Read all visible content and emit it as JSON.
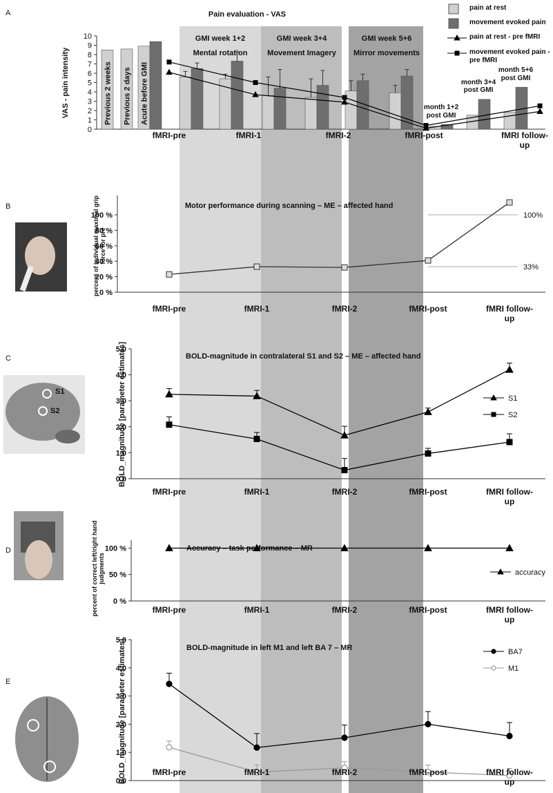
{
  "gmi_phases": [
    {
      "label": "GMI week 1+2",
      "task": "Mental rotation"
    },
    {
      "label": "GMI week 3+4",
      "task": "Movement Imagery"
    },
    {
      "label": "GMI week 5+6",
      "task": "Mirror movements"
    }
  ],
  "chart_data": [
    {
      "panel": "A",
      "type": "bar",
      "title": "Pain evaluation - VAS",
      "y_label": "VAS - pain intensity",
      "ylim": [
        0,
        10
      ],
      "yticks": [
        0,
        1,
        2,
        3,
        4,
        5,
        6,
        7,
        8,
        9,
        10
      ],
      "legend": "top-right",
      "categories": [
        "Previous 2 weeks",
        "Previous 2 days",
        "Acute before GMI",
        null,
        null,
        null,
        null,
        null,
        null,
        "month 1+2 post GMI",
        "month 3+4 post GMI",
        "month 5+6 post GMI"
      ],
      "series": [
        {
          "name": "pain at rest",
          "color": "#d0d0d0",
          "values": [
            8.5,
            8.6,
            8.9,
            5.6,
            5.4,
            3.6,
            3.4,
            4.1,
            3.9,
            0.3,
            1.5,
            1.8
          ],
          "errors": [
            null,
            null,
            null,
            0.6,
            0.5,
            2.0,
            2.0,
            1.1,
            0.8,
            null,
            null,
            null
          ]
        },
        {
          "name": "movement evoked pain",
          "color": "#6e6e6e",
          "values": [
            null,
            null,
            9.4,
            6.5,
            7.3,
            4.4,
            4.7,
            5.2,
            5.7,
            0.5,
            3.2,
            4.5
          ],
          "errors": [
            null,
            null,
            null,
            0.6,
            1.0,
            2.0,
            1.6,
            0.7,
            0.7,
            null,
            null,
            null
          ]
        }
      ],
      "lines": {
        "categories": [
          "fMRI-pre",
          "fMRI-1",
          "fMRI-2",
          "fMRI-post",
          "fMRI follow-up"
        ],
        "series": [
          {
            "name": "pain at rest - pre fMRI",
            "color": "#000000",
            "marker": "triangle",
            "values": [
              6.1,
              3.7,
              2.9,
              0.1,
              1.9
            ]
          },
          {
            "name": "movement evoked pain - pre fMRI",
            "color": "#000000",
            "marker": "square",
            "values": [
              7.2,
              5.0,
              3.4,
              0.4,
              2.5
            ]
          }
        ]
      }
    },
    {
      "panel": "B",
      "type": "line",
      "title": "Motor performance during scanning – ME – affected hand",
      "y_label": "percent of individual maximal grip force for pre",
      "ylim": [
        0,
        125
      ],
      "yticks": [
        {
          "value": 0,
          "label": "0 %"
        },
        {
          "value": 20,
          "label": "20 %"
        },
        {
          "value": 40,
          "label": "40 %"
        },
        {
          "value": 60,
          "label": "60 %"
        },
        {
          "value": 80,
          "label": "80 %"
        },
        {
          "value": 100,
          "label": "100 %"
        }
      ],
      "categories": [
        "fMRI-pre",
        "fMRI-1",
        "fMRI-2",
        "fMRI-post",
        "fMRI follow-up"
      ],
      "series": [
        {
          "color": "#333333",
          "marker": "square",
          "marker_fill": "#dddddd",
          "values": [
            23,
            33,
            32,
            41,
            116
          ]
        }
      ],
      "reference_lines": [
        {
          "value": 100,
          "label": "100%"
        },
        {
          "value": 33,
          "label": "33%"
        }
      ]
    },
    {
      "panel": "C",
      "type": "line",
      "title": "BOLD-magnitude in contralateral S1 and S2 – ME – affected hand",
      "y_label": "BOLD_magnitude [parameter estimates]",
      "image_labels": [
        "S1",
        "S2"
      ],
      "ylim": [
        0,
        5
      ],
      "yticks": [
        {
          "value": 0,
          "label": "0.0"
        },
        {
          "value": 1,
          "label": "1.0"
        },
        {
          "value": 2,
          "label": "2.0"
        },
        {
          "value": 3,
          "label": "3.0"
        },
        {
          "value": 4,
          "label": "4.0"
        },
        {
          "value": 5,
          "label": "5.0"
        }
      ],
      "categories": [
        "fMRI-pre",
        "fMRI-1",
        "fMRI-2",
        "fMRI-post",
        "fMRI follow-up"
      ],
      "series": [
        {
          "name": "S1",
          "color": "#000000",
          "marker": "triangle",
          "values": [
            3.25,
            3.18,
            1.67,
            2.57,
            4.2
          ],
          "errors": [
            0.22,
            0.22,
            0.35,
            0.15,
            0.25
          ]
        },
        {
          "name": "S2",
          "color": "#000000",
          "marker": "square",
          "values": [
            2.08,
            1.53,
            0.33,
            0.97,
            1.41
          ],
          "errors": [
            0.3,
            0.25,
            0.45,
            0.2,
            0.32
          ]
        }
      ]
    },
    {
      "panel": "D",
      "type": "line",
      "title": "Accuracy – task performance – MR",
      "y_label": "percent of correct left/right hand judgments",
      "ylim": [
        0,
        115
      ],
      "yticks": [
        {
          "value": 0,
          "label": "0 %"
        },
        {
          "value": 50,
          "label": "50 %"
        },
        {
          "value": 100,
          "label": "100 %"
        }
      ],
      "categories": [
        "fMRI-pre",
        "fMRI-1",
        "fMRI-2",
        "fMRI-post",
        "fMRI follow-up"
      ],
      "series": [
        {
          "name": "accuracy",
          "color": "#000000",
          "marker": "triangle",
          "values": [
            100,
            100,
            100,
            100,
            100
          ]
        }
      ]
    },
    {
      "panel": "E",
      "type": "line",
      "title": "BOLD-magnitude in left M1 and left BA 7 – MR",
      "y_label": "BOLD_magnitude [parameter estimates]",
      "ylim": [
        0,
        5
      ],
      "yticks": [
        {
          "value": 0,
          "label": "0.0"
        },
        {
          "value": 1,
          "label": "1.0"
        },
        {
          "value": 2,
          "label": "2.0"
        },
        {
          "value": 3,
          "label": "3.0"
        },
        {
          "value": 4,
          "label": "4.0"
        },
        {
          "value": 5,
          "label": "5.0"
        }
      ],
      "categories": [
        "fMRI-pre",
        "fMRI-1",
        "fMRI-2",
        "fMRI-post",
        "fMRI follow-up"
      ],
      "series": [
        {
          "name": "BA7",
          "color": "#000000",
          "marker": "circle",
          "values": [
            3.43,
            1.17,
            1.52,
            2.0,
            1.58
          ],
          "errors": [
            0.38,
            0.5,
            0.45,
            0.45,
            0.48
          ]
        },
        {
          "name": "M1",
          "color": "#999999",
          "marker": "circle",
          "marker_fill": "#ffffff",
          "values": [
            1.18,
            0.3,
            0.45,
            0.3,
            0.18
          ],
          "errors": [
            0.22,
            0.25,
            0.22,
            0.25,
            0.25
          ]
        }
      ]
    }
  ]
}
